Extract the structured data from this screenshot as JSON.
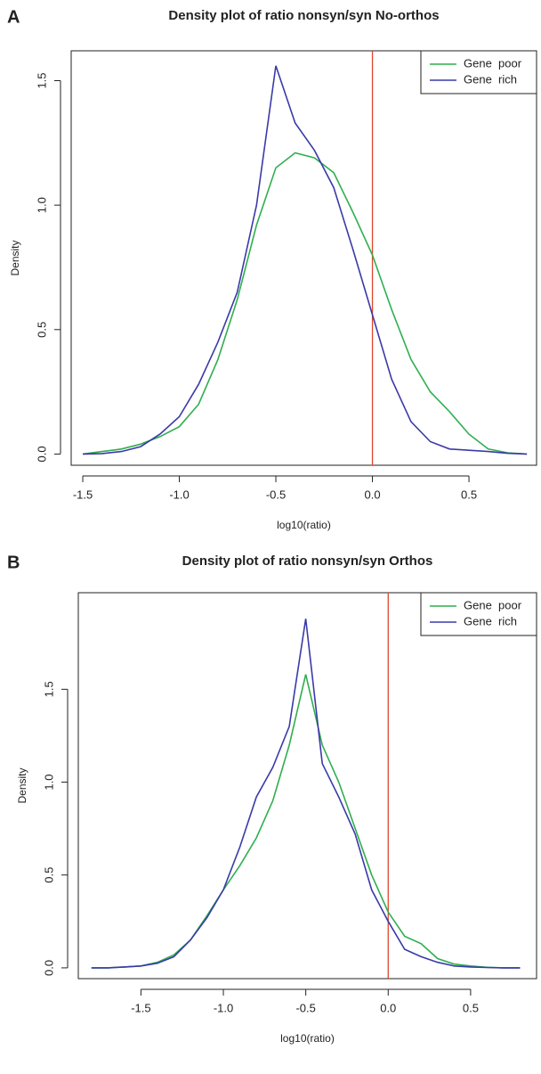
{
  "chart_data": [
    {
      "type": "line",
      "panel_label": "A",
      "title": "Density plot of ratio nonsyn/syn No-orthos",
      "x_label": "log10(ratio)",
      "y_label": "Density",
      "x": [
        -1.5,
        -1.4,
        -1.3,
        -1.2,
        -1.1,
        -1.0,
        -0.9,
        -0.8,
        -0.7,
        -0.6,
        -0.5,
        -0.4,
        -0.3,
        -0.2,
        -0.1,
        0.0,
        0.1,
        0.2,
        0.3,
        0.4,
        0.5,
        0.6,
        0.7,
        0.8
      ],
      "series": [
        {
          "name": "Gene  poor",
          "color": "#2fae4e",
          "values": [
            0.0,
            0.01,
            0.02,
            0.04,
            0.07,
            0.11,
            0.2,
            0.38,
            0.62,
            0.92,
            1.15,
            1.21,
            1.19,
            1.13,
            0.97,
            0.8,
            0.58,
            0.38,
            0.25,
            0.17,
            0.08,
            0.02,
            0.005,
            0.0
          ]
        },
        {
          "name": "Gene  rich",
          "color": "#3a3aa8",
          "values": [
            0.0,
            0.002,
            0.01,
            0.03,
            0.08,
            0.15,
            0.28,
            0.45,
            0.65,
            1.0,
            1.56,
            1.33,
            1.22,
            1.07,
            0.82,
            0.56,
            0.3,
            0.13,
            0.05,
            0.02,
            0.015,
            0.01,
            0.003,
            0.0
          ]
        }
      ],
      "xlim": [
        -1.56,
        0.85
      ],
      "ylim": [
        -0.045,
        1.62
      ],
      "xticks": [
        -1.5,
        {
          "value": -1,
          "label": "-1.0"
        },
        -0.5,
        {
          "value": 0,
          "label": "0.0"
        },
        0.5
      ],
      "yticks": [
        {
          "value": 0,
          "label": "0.0"
        },
        0.5,
        {
          "value": 1,
          "label": "1.0"
        },
        1.5
      ],
      "vline": 0,
      "vline_color": "#e0452a",
      "legend": "top-right"
    },
    {
      "type": "line",
      "panel_label": "B",
      "title": "Density plot of ratio nonsyn/syn Orthos",
      "x_label": "log10(ratio)",
      "y_label": "Density",
      "x": [
        -1.8,
        -1.7,
        -1.6,
        -1.5,
        -1.4,
        -1.3,
        -1.2,
        -1.1,
        -1.0,
        -0.9,
        -0.8,
        -0.7,
        -0.6,
        -0.5,
        -0.4,
        -0.3,
        -0.2,
        -0.1,
        0.0,
        0.1,
        0.2,
        0.3,
        0.4,
        0.5,
        0.6,
        0.7,
        0.8
      ],
      "series": [
        {
          "name": "Gene  poor",
          "color": "#2fae4e",
          "values": [
            0.0,
            0.0,
            0.005,
            0.01,
            0.03,
            0.07,
            0.15,
            0.28,
            0.42,
            0.55,
            0.7,
            0.9,
            1.2,
            1.58,
            1.2,
            1.0,
            0.75,
            0.5,
            0.3,
            0.17,
            0.13,
            0.05,
            0.02,
            0.01,
            0.003,
            0.0,
            0.0
          ]
        },
        {
          "name": "Gene  rich",
          "color": "#3a3aa8",
          "values": [
            0.0,
            0.0,
            0.005,
            0.01,
            0.025,
            0.06,
            0.15,
            0.27,
            0.42,
            0.65,
            0.92,
            1.08,
            1.3,
            1.88,
            1.1,
            0.92,
            0.72,
            0.42,
            0.25,
            0.1,
            0.06,
            0.03,
            0.01,
            0.005,
            0.002,
            0.0,
            0.0
          ]
        }
      ],
      "xlim": [
        -1.88,
        0.9
      ],
      "ylim": [
        -0.058,
        2.02
      ],
      "xticks": [
        -1.5,
        {
          "value": -1,
          "label": "-1.0"
        },
        -0.5,
        {
          "value": 0,
          "label": "0.0"
        },
        0.5
      ],
      "yticks": [
        {
          "value": 0,
          "label": "0.0"
        },
        0.5,
        {
          "value": 1,
          "label": "1.0"
        },
        1.5
      ],
      "vline": 0,
      "vline_color": "#e0452a",
      "legend": "top-right"
    }
  ]
}
